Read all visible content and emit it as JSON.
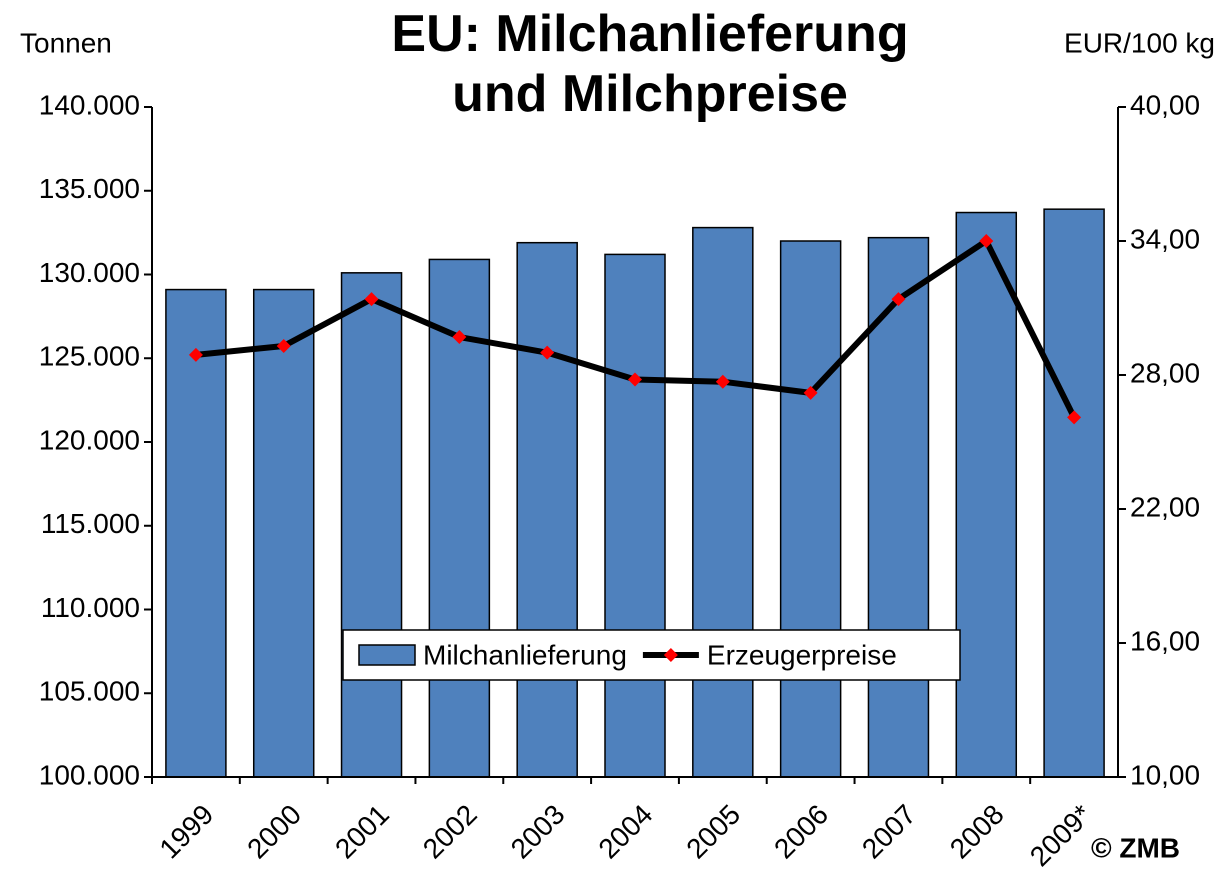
{
  "chart_data": {
    "type": "bar",
    "title": "EU: Milchanlieferung und Milchpreise",
    "y_label": "Tonnen",
    "y2_label": "EUR/100 kg",
    "annotation": "© ZMB",
    "categories": [
      "1999",
      "2000",
      "2001",
      "2002",
      "2003",
      "2004",
      "2005",
      "2006",
      "2007",
      "2008",
      "2009*"
    ],
    "series": [
      {
        "name": "Milchanlieferung",
        "type": "bar",
        "color": "#4f81bd",
        "axis": "y",
        "values": [
          129100,
          129100,
          130100,
          130900,
          131900,
          131200,
          132800,
          132000,
          132200,
          133700,
          133900
        ]
      },
      {
        "name": "Erzeugerpreise",
        "type": "line",
        "color": "#000000",
        "marker_color": "#ff0000",
        "axis": "y2",
        "values": [
          28.9,
          29.3,
          31.4,
          29.7,
          29.0,
          27.8,
          27.7,
          27.2,
          31.4,
          34.0,
          26.1
        ]
      }
    ],
    "ylim": [
      100000,
      140000
    ],
    "yticks": [
      {
        "value": 100000,
        "label": "100.000"
      },
      {
        "value": 105000,
        "label": "105.000"
      },
      {
        "value": 110000,
        "label": "110.000"
      },
      {
        "value": 115000,
        "label": "115.000"
      },
      {
        "value": 120000,
        "label": "120.000"
      },
      {
        "value": 125000,
        "label": "125.000"
      },
      {
        "value": 130000,
        "label": "130.000"
      },
      {
        "value": 135000,
        "label": "135.000"
      },
      {
        "value": 140000,
        "label": "140.000"
      }
    ],
    "y2lim": [
      10,
      40
    ],
    "y2ticks": [
      {
        "value": 10,
        "label": "10,00"
      },
      {
        "value": 16,
        "label": "16,00"
      },
      {
        "value": 22,
        "label": "22,00"
      },
      {
        "value": 28,
        "label": "28,00"
      },
      {
        "value": 34,
        "label": "34,00"
      },
      {
        "value": 40,
        "label": "40,00"
      }
    ],
    "grid": false,
    "legend": "lower center"
  }
}
